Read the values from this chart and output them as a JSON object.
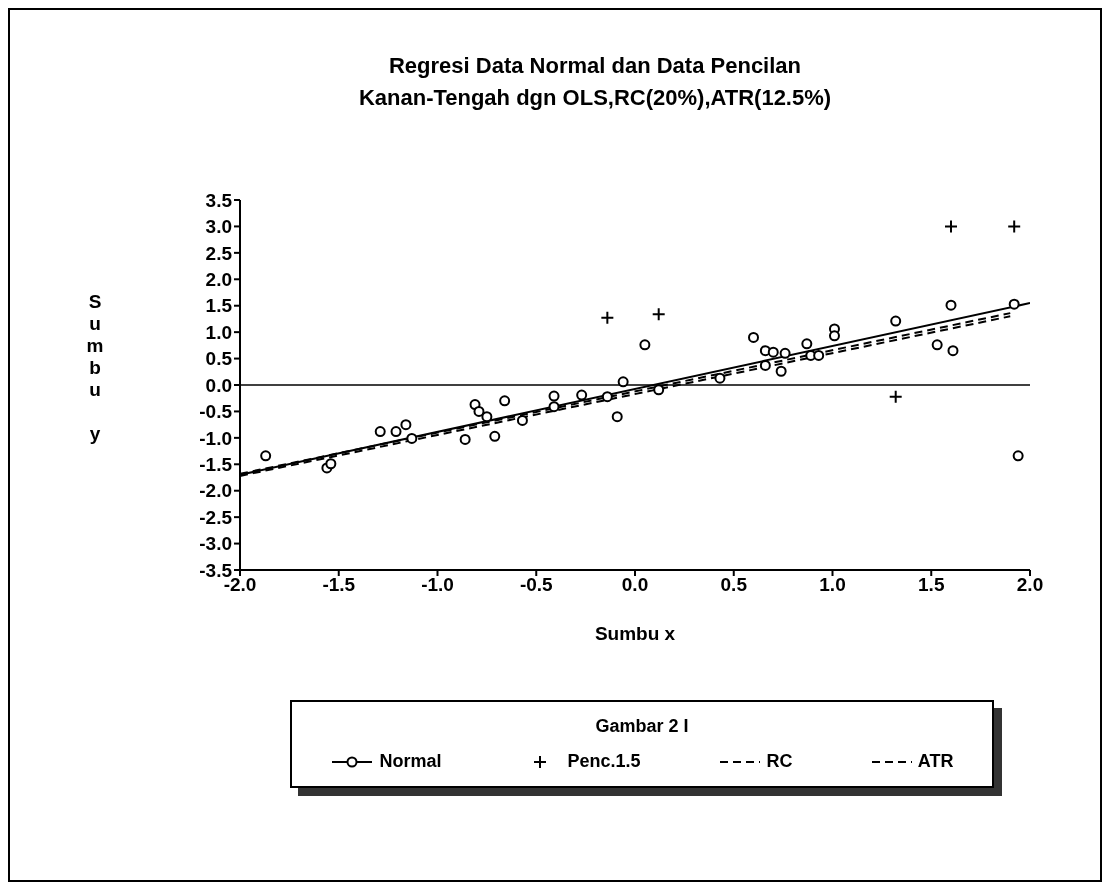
{
  "chart_data": {
    "type": "scatter",
    "title": "Regresi Data Normal dan Data Pencilan\nKanan-Tengah dgn OLS,RC(20%),ATR(12.5%)",
    "xlabel": "Sumbu x",
    "ylabel": "Sumbu y",
    "legend_title": "Gambar 2 I",
    "legend": "bottom",
    "grid": false,
    "xlim": [
      -2,
      2
    ],
    "xticks": [
      {
        "value": -2,
        "label": "-2.0"
      },
      -1.5,
      {
        "value": -1,
        "label": "-1.0"
      },
      -0.5,
      {
        "value": 0,
        "label": "0.0"
      },
      0.5,
      {
        "value": 1,
        "label": "1.0"
      },
      1.5,
      {
        "value": 2,
        "label": "2.0"
      }
    ],
    "ylim": [
      -3.5,
      3.5
    ],
    "yticks": [
      -3.5,
      {
        "value": -3,
        "label": "-3.0"
      },
      -2.5,
      {
        "value": -2,
        "label": "-2.0"
      },
      -1.5,
      {
        "value": -1,
        "label": "-1.0"
      },
      -0.5,
      {
        "value": 0,
        "label": "0.0"
      },
      0.5,
      {
        "value": 1,
        "label": "1.0"
      },
      1.5,
      {
        "value": 2,
        "label": "2.0"
      },
      2.5,
      {
        "value": 3,
        "label": "3.0"
      },
      3.5
    ],
    "ref_lines": [
      {
        "axis": "y",
        "value": 0,
        "color": "#000000"
      }
    ],
    "series": [
      {
        "name": "Normal",
        "type": "scatter",
        "marker": "circle",
        "color": "#000000",
        "x": [
          -1.87,
          -1.56,
          -1.54,
          -1.29,
          -1.21,
          -1.16,
          -1.13,
          -0.86,
          -0.81,
          -0.79,
          -0.75,
          -0.71,
          -0.66,
          -0.57,
          -0.41,
          -0.41,
          -0.27,
          -0.14,
          -0.09,
          -0.06,
          0.05,
          0.12,
          0.43,
          0.6,
          0.66,
          0.7,
          0.76,
          0.74,
          0.66,
          0.87,
          0.89,
          0.93,
          1.01,
          1.01,
          1.32,
          1.6,
          1.92,
          1.53,
          1.61,
          1.94
        ],
        "values": [
          -1.34,
          -1.57,
          -1.49,
          -0.88,
          -0.88,
          -0.75,
          -1.01,
          -1.03,
          -0.37,
          -0.5,
          -0.6,
          -0.97,
          -0.3,
          -0.67,
          -0.21,
          -0.41,
          -0.19,
          -0.22,
          -0.6,
          0.06,
          0.76,
          -0.09,
          0.13,
          0.9,
          0.65,
          0.62,
          0.6,
          0.26,
          0.37,
          0.78,
          0.56,
          0.56,
          1.06,
          0.93,
          1.21,
          1.51,
          1.53,
          0.76,
          0.65,
          -1.34
        ]
      },
      {
        "name": "Penc.1.5",
        "type": "scatter",
        "marker": "cross",
        "color": "#000000",
        "x": [
          -0.14,
          0.12,
          1.6,
          1.92,
          1.32
        ],
        "values": [
          1.27,
          1.34,
          3.0,
          3.0,
          -0.22
        ]
      },
      {
        "type": "line",
        "line_style": "solid",
        "marker": "none",
        "color": "#000000",
        "x": [
          -2,
          2
        ],
        "values": [
          -1.7,
          1.55
        ]
      },
      {
        "name": "RC",
        "type": "line",
        "line_style": "dashed",
        "marker": "none",
        "color": "#000000",
        "x": [
          -2,
          1.9
        ],
        "values": [
          -1.68,
          1.36
        ]
      },
      {
        "name": "ATR",
        "type": "line",
        "line_style": "dashed",
        "marker": "none",
        "color": "#000000",
        "x": [
          -2,
          1.9
        ],
        "values": [
          -1.72,
          1.3
        ]
      }
    ]
  }
}
